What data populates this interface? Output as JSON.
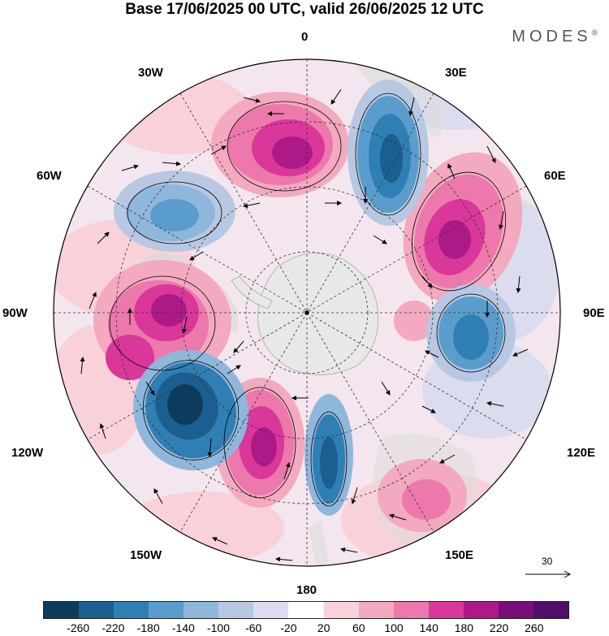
{
  "title": "Base 17/06/2025 00 UTC, valid 26/06/2025 12 UTC",
  "brand": "MODES",
  "brand_mark": "®",
  "longitude_labels": {
    "top": "0",
    "top_left": "30W",
    "top_right": "30E",
    "upper_left": "60W",
    "upper_right": "60E",
    "left": "90W",
    "right": "90E",
    "lower_left": "120W",
    "lower_right": "120E",
    "bottom_left": "150W",
    "bottom_right": "150E",
    "bottom": "180"
  },
  "reference_vector": "30",
  "colorbar": {
    "colors": [
      "#0d3b5e",
      "#1a5f8f",
      "#2f7fb4",
      "#5a9dcc",
      "#8fb7dc",
      "#b8c8e2",
      "#dcdcef",
      "#ffffff",
      "#f8d2d8",
      "#f3a9bf",
      "#ec78ac",
      "#d9379a",
      "#ad1a87",
      "#7a0e79",
      "#4e0e6a"
    ],
    "labels": [
      "-260",
      "-220",
      "-180",
      "-140",
      "-100",
      "-60",
      "-20",
      "20",
      "60",
      "100",
      "140",
      "180",
      "220",
      "260"
    ]
  },
  "colors": {
    "land": "#dcdcdc",
    "antarctica": "#e8e8e8",
    "frame": "#000000"
  }
}
